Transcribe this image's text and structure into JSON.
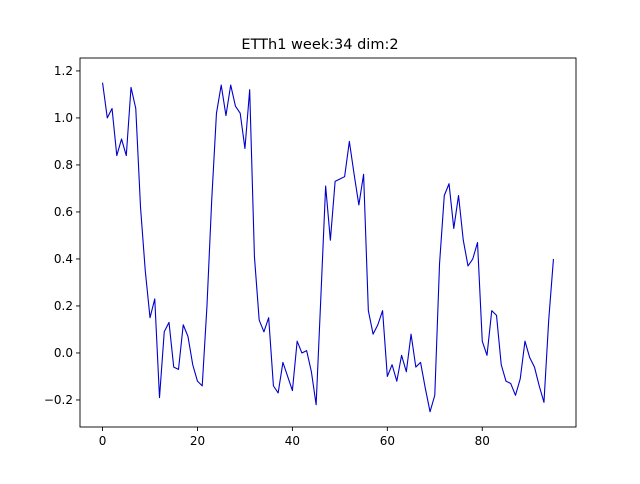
{
  "chart_data": {
    "type": "line",
    "title": "ETTh1 week:34 dim:2",
    "xlabel": "",
    "ylabel": "",
    "xlim": [
      -4.75,
      99.75
    ],
    "ylim": [
      -0.315,
      1.255
    ],
    "xticks": [
      0,
      20,
      40,
      60,
      80
    ],
    "xtick_labels": [
      "0",
      "20",
      "40",
      "60",
      "80"
    ],
    "yticks": [
      -0.2,
      0.0,
      0.2,
      0.4,
      0.6,
      0.8,
      1.0,
      1.2
    ],
    "ytick_labels": [
      "−0.2",
      "0.0",
      "0.2",
      "0.4",
      "0.6",
      "0.8",
      "1.0",
      "1.2"
    ],
    "grid": false,
    "line_color": "#0000cc",
    "series": [
      {
        "x": [
          0,
          1,
          2,
          3,
          4,
          5,
          6,
          7,
          8,
          9,
          10,
          11,
          12,
          13,
          14,
          15,
          16,
          17,
          18,
          19,
          20,
          21,
          22,
          23,
          24,
          25,
          26,
          27,
          28,
          29,
          30,
          31,
          32,
          33,
          34,
          35,
          36,
          37,
          38,
          39,
          40,
          41,
          42,
          43,
          44,
          45,
          46,
          47,
          48,
          49,
          50,
          51,
          52,
          53,
          54,
          55,
          56,
          57,
          58,
          59,
          60,
          61,
          62,
          63,
          64,
          65,
          66,
          67,
          68,
          69,
          70,
          71,
          72,
          73,
          74,
          75,
          76,
          77,
          78,
          79,
          80,
          81,
          82,
          83,
          84,
          85,
          86,
          87,
          88,
          89,
          90,
          91,
          92,
          93,
          94,
          95
        ],
        "values": [
          1.15,
          1.0,
          1.04,
          0.84,
          0.91,
          0.84,
          1.13,
          1.04,
          0.62,
          0.35,
          0.15,
          0.23,
          -0.19,
          0.09,
          0.13,
          -0.06,
          -0.07,
          0.12,
          0.07,
          -0.05,
          -0.12,
          -0.14,
          0.2,
          0.65,
          1.02,
          1.14,
          1.01,
          1.14,
          1.05,
          1.02,
          0.87,
          1.12,
          0.41,
          0.14,
          0.09,
          0.15,
          -0.14,
          -0.17,
          -0.04,
          -0.1,
          -0.16,
          0.05,
          0.0,
          0.01,
          -0.08,
          -0.22,
          0.24,
          0.71,
          0.48,
          0.73,
          0.74,
          0.75,
          0.9,
          0.76,
          0.63,
          0.76,
          0.18,
          0.08,
          0.12,
          0.18,
          -0.1,
          -0.05,
          -0.12,
          -0.01,
          -0.08,
          0.08,
          -0.06,
          -0.04,
          -0.15,
          -0.25,
          -0.18,
          0.38,
          0.67,
          0.72,
          0.53,
          0.67,
          0.48,
          0.37,
          0.4,
          0.47,
          0.05,
          -0.01,
          0.18,
          0.16,
          -0.05,
          -0.12,
          -0.13,
          -0.18,
          -0.11,
          0.05,
          -0.02,
          -0.06,
          -0.14,
          -0.21,
          0.14,
          0.4
        ]
      }
    ]
  }
}
